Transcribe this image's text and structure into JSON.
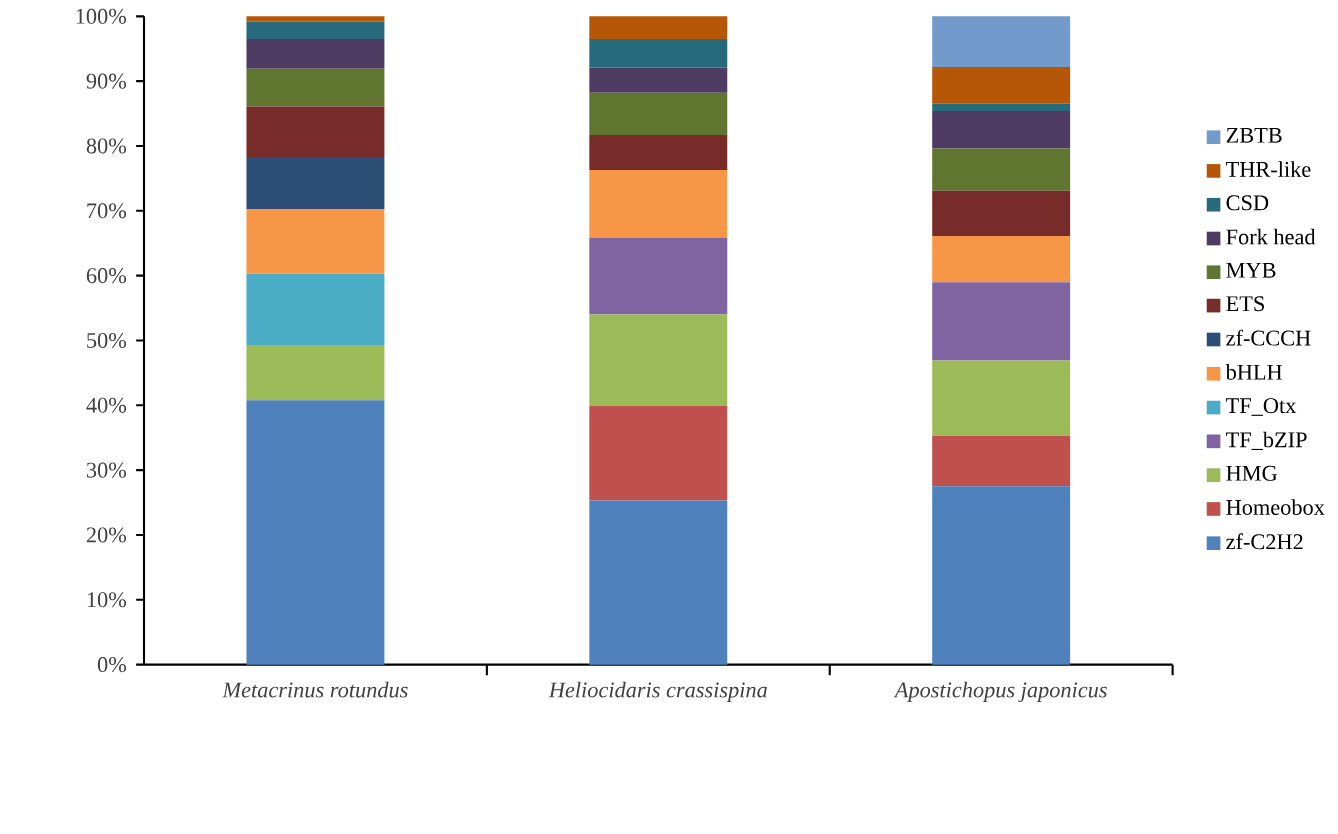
{
  "chart_data": {
    "type": "bar",
    "stacked": true,
    "legend": "right",
    "grid": false,
    "categories": [
      "Metacrinus rotundus",
      "Heliocidaris crassispina",
      "Apostichopus japonicus"
    ],
    "ylim": [
      0,
      100
    ],
    "yticks": [
      {
        "value": 0,
        "label": "0%"
      },
      {
        "value": 10,
        "label": "10%"
      },
      {
        "value": 20,
        "label": "20%"
      },
      {
        "value": 30,
        "label": "30%"
      },
      {
        "value": 40,
        "label": "40%"
      },
      {
        "value": 50,
        "label": "50%"
      },
      {
        "value": 60,
        "label": "60%"
      },
      {
        "value": 70,
        "label": "70%"
      },
      {
        "value": 80,
        "label": "80%"
      },
      {
        "value": 90,
        "label": "90%"
      },
      {
        "value": 100,
        "label": "100%"
      }
    ],
    "series": [
      {
        "name": "zf-C2H2",
        "color": "#4f81bd",
        "values": [
          40.8,
          25.3,
          27.5
        ]
      },
      {
        "name": "Homeobox",
        "color": "#c0504d",
        "values": [
          0,
          14.6,
          7.8
        ]
      },
      {
        "name": "HMG",
        "color": "#9bbb59",
        "values": [
          8.5,
          14.1,
          11.6
        ]
      },
      {
        "name": "TF_bZIP",
        "color": "#8064a2",
        "values": [
          0,
          11.8,
          12.1
        ]
      },
      {
        "name": "TF_Otx",
        "color": "#4bacc6",
        "values": [
          11.0,
          0,
          0
        ]
      },
      {
        "name": "bHLH",
        "color": "#f79646",
        "values": [
          10.0,
          10.5,
          7.1
        ]
      },
      {
        "name": "zf-CCCH",
        "color": "#2c4d75",
        "values": [
          8.0,
          0,
          0
        ]
      },
      {
        "name": "ETS",
        "color": "#772c2a",
        "values": [
          7.8,
          5.4,
          7.0
        ]
      },
      {
        "name": "MYB",
        "color": "#5f7530",
        "values": [
          5.8,
          6.5,
          6.5
        ]
      },
      {
        "name": "Fork head",
        "color": "#4d3b62",
        "values": [
          4.6,
          3.9,
          5.8
        ]
      },
      {
        "name": "CSD",
        "color": "#276a7c",
        "values": [
          2.7,
          4.4,
          1.1
        ]
      },
      {
        "name": "THR-like",
        "color": "#b65708",
        "values": [
          0.8,
          3.5,
          5.7
        ]
      },
      {
        "name": "ZBTB",
        "color": "#729aca",
        "values": [
          0,
          0,
          7.8
        ]
      }
    ]
  }
}
